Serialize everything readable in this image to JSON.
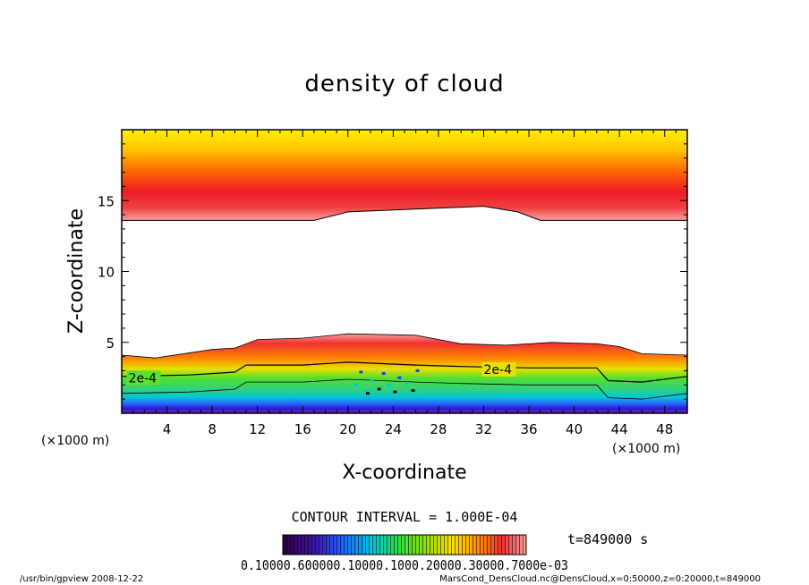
{
  "chart_data": {
    "type": "heatmap",
    "title": "density of cloud",
    "xlabel": "X-coordinate",
    "ylabel": "Z-coordinate",
    "x_unit": "(×1000 m)",
    "z_unit": "(×1000 m)",
    "xlim": [
      0,
      50
    ],
    "ylim": [
      0,
      20
    ],
    "x_ticks": [
      4,
      8,
      12,
      16,
      20,
      24,
      28,
      32,
      36,
      40,
      44,
      48
    ],
    "y_ticks": [
      5,
      10,
      15
    ],
    "contour_interval_text": "CONTOUR INTERVAL = 1.000E-04",
    "contour_labels": [
      "2e-4",
      "2e-4"
    ],
    "time_label": "t=849000 s",
    "colorbar_labels_text": "0.10000.600000.10000.1000.20000.30000.7000e-03",
    "upper_layer": {
      "bottom_km_at_x": [
        [
          0,
          13.6
        ],
        [
          17,
          13.6
        ],
        [
          20,
          14.2
        ],
        [
          32,
          14.6
        ],
        [
          35,
          14.2
        ],
        [
          37,
          13.6
        ],
        [
          50,
          13.6
        ]
      ],
      "top_km": 20,
      "peak_km": 15.6
    },
    "lower_layer": {
      "top_km_at_x": [
        [
          0,
          4.1
        ],
        [
          3,
          3.9
        ],
        [
          8,
          4.5
        ],
        [
          10,
          4.6
        ],
        [
          12,
          5.2
        ],
        [
          16,
          5.3
        ],
        [
          20,
          5.6
        ],
        [
          26,
          5.5
        ],
        [
          30,
          4.9
        ],
        [
          34,
          4.8
        ],
        [
          38,
          5.0
        ],
        [
          42,
          4.9
        ],
        [
          44,
          4.7
        ],
        [
          46,
          4.2
        ],
        [
          50,
          4.1
        ]
      ],
      "contour_2e4_at_x": [
        [
          0,
          2.6
        ],
        [
          6,
          2.7
        ],
        [
          10,
          2.9
        ],
        [
          11,
          3.4
        ],
        [
          16,
          3.4
        ],
        [
          20,
          3.6
        ],
        [
          26,
          3.4
        ],
        [
          30,
          3.3
        ],
        [
          36,
          3.2
        ],
        [
          42,
          3.2
        ],
        [
          43,
          2.3
        ],
        [
          46,
          2.2
        ],
        [
          50,
          2.6
        ]
      ]
    }
  },
  "footer": {
    "program": "/usr/bin/gpview  2008-12-22",
    "source": "MarsCond_DensCloud.nc@DensCloud,x=0:50000,z=0:20000,t=849000"
  },
  "colors": {
    "yellow": "#fde400",
    "orange": "#ff9a00",
    "red": "#ee1c24",
    "light_red": "#f9a0a0",
    "green": "#40e040",
    "cyan": "#00c8c8",
    "blue": "#1e3cff",
    "purple": "#7a1fb4"
  }
}
